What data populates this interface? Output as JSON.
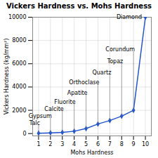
{
  "chart_data": {
    "type": "line",
    "title": "Vickers Hardness vs. Mohs Hardness",
    "xlabel": "Mohs Hardness",
    "ylabel": "Vickers Hardness (kg/mm²)",
    "x": [
      1,
      2,
      3,
      4,
      5,
      6,
      7,
      8,
      9,
      10
    ],
    "values": [
      30,
      61,
      109,
      200,
      430,
      820,
      1120,
      1500,
      2000,
      10000
    ],
    "color": "#2255cc",
    "marker": "diamond",
    "xlim": [
      0.5,
      10.5
    ],
    "ylim": [
      -200,
      10000
    ],
    "xticks": [
      1,
      2,
      3,
      4,
      5,
      6,
      7,
      8,
      9,
      10
    ],
    "yticks": [
      0,
      2000,
      4000,
      6000,
      8000,
      10000
    ],
    "grid": true,
    "annotations": [
      {
        "text": "Talc",
        "x": 1,
        "y": 30
      },
      {
        "text": "Gypsum",
        "x": 2,
        "y": 61
      },
      {
        "text": "Calcite",
        "x": 3,
        "y": 109
      },
      {
        "text": "Fluorite",
        "x": 4,
        "y": 200
      },
      {
        "text": "Apatite",
        "x": 5,
        "y": 430
      },
      {
        "text": "Orthoclase",
        "x": 6,
        "y": 820
      },
      {
        "text": "Quartz",
        "x": 7,
        "y": 1120
      },
      {
        "text": "Topaz",
        "x": 8,
        "y": 1500
      },
      {
        "text": "Corundum",
        "x": 9,
        "y": 2000
      },
      {
        "text": "Diamond",
        "x": 10,
        "y": 10000
      }
    ]
  }
}
